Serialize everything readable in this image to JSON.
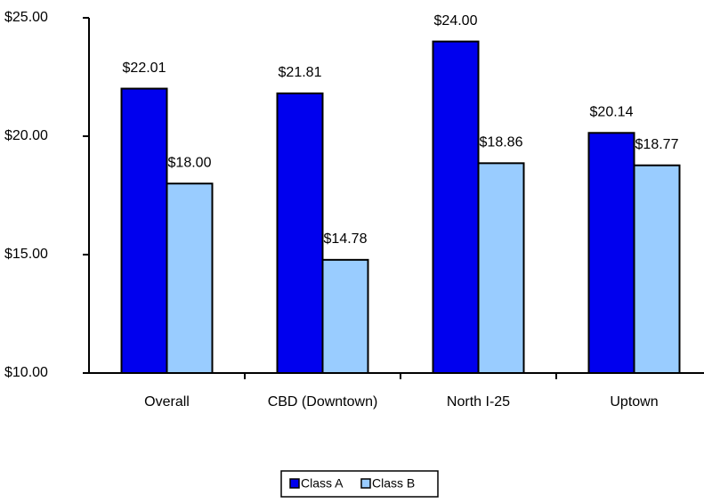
{
  "chart_data": {
    "type": "bar",
    "categories": [
      "Overall",
      "CBD (Downtown)",
      "North I-25",
      "Uptown"
    ],
    "series": [
      {
        "name": "Class A",
        "color": "#0000ee",
        "values": [
          22.01,
          21.81,
          24.0,
          20.14
        ],
        "value_labels": [
          "$22.01",
          "$21.81",
          "$24.00",
          "$20.14"
        ]
      },
      {
        "name": "Class B",
        "color": "#99ccff",
        "values": [
          18.0,
          14.78,
          18.86,
          18.77
        ],
        "value_labels": [
          "$18.00",
          "$14.78",
          "$18.86",
          "$18.77"
        ]
      }
    ],
    "ylim": [
      10,
      25
    ],
    "yticks": [
      {
        "value": 10,
        "label": "$10.00"
      },
      {
        "value": 15,
        "label": "$15.00"
      },
      {
        "value": 20,
        "label": "$20.00"
      },
      {
        "value": 25,
        "label": "$25.00"
      }
    ],
    "legend": "bottom"
  }
}
